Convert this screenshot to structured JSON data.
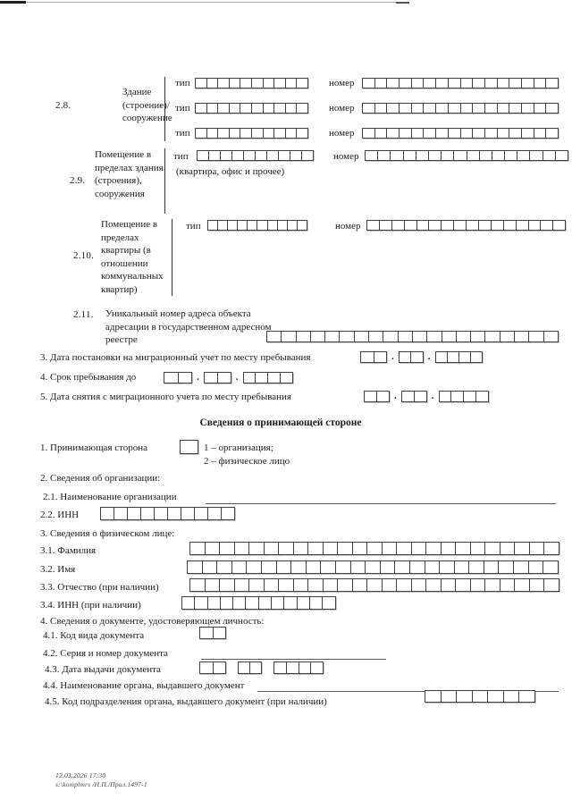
{
  "labels": {
    "tip": "тип",
    "nomer": "номер",
    "date_sep": "."
  },
  "address": {
    "tip_cells": 10,
    "nomer_cells": 16,
    "s28": {
      "num": "2.8.",
      "label": "Здание (строение)/ сооружение"
    },
    "s29": {
      "num": "2.9.",
      "label": "Помещение в пределах здания (строения), сооружения",
      "hint": "(квартира, офис и прочее)"
    },
    "s210": {
      "num": "2.10.",
      "label": "Помещение в пределах квартиры (в отношении коммунальных квартир)"
    },
    "s211": {
      "num": "2.11.",
      "label": "Уникальный номер адреса объекта адресации в государственном адресном реестре",
      "cells": 20
    }
  },
  "items": {
    "i3": {
      "label": "3. Дата постановки на миграционный учет по месту пребывания",
      "d1": 2,
      "d2": 2,
      "d3": 4
    },
    "i4": {
      "label": "4. Срок пребывания до",
      "d1": 2,
      "d2": 2,
      "d3": 4
    },
    "i5": {
      "label": "5. Дата снятия с миграционного учета по месту пребывания",
      "d1": 2,
      "d2": 2,
      "d3": 4
    }
  },
  "host": {
    "title": "Сведения о принимающей стороне",
    "q1": {
      "label": "1. Принимающая сторона",
      "box_cells": 1,
      "option1": "1 – организация;",
      "option2": "2 – физическое лицо"
    },
    "q2": {
      "label": "2. Сведения об организации:"
    },
    "q21": {
      "label": "2.1. Наименование организации"
    },
    "q22": {
      "label": "2.2. ИНН",
      "cells": 10
    },
    "q3": {
      "label": "3. Сведения о физическом лице:"
    },
    "q31": {
      "label": "3.1. Фамилия",
      "cells": 25
    },
    "q32": {
      "label": "3.2. Имя",
      "cells": 25
    },
    "q33": {
      "label": "3.3. Отчество (при наличии)",
      "cells": 25
    },
    "q34": {
      "label": "3.4. ИНН (при наличии)",
      "cells": 12
    },
    "q4": {
      "label": "4. Сведения о документе, удостоверяющем личность:"
    },
    "q41": {
      "label": "4.1. Код вида документа",
      "cells": 2
    },
    "q42": {
      "label": "4.2. Серия и номер документа"
    },
    "q43": {
      "label": "4.3. Дата выдачи документа",
      "d1": 2,
      "d2": 2,
      "d3": 4
    },
    "q44": {
      "label": "4.4. Наименование органа, выдавшего документ"
    },
    "q45": {
      "label": "4.5. Код подразделения органа, выдавшего документ (при наличии)",
      "cells": 7
    }
  },
  "footer": {
    "line1": "12.03.2026 17:30",
    "line2": "s:\\komplmrs /Н.П./Прил.1497-1"
  }
}
